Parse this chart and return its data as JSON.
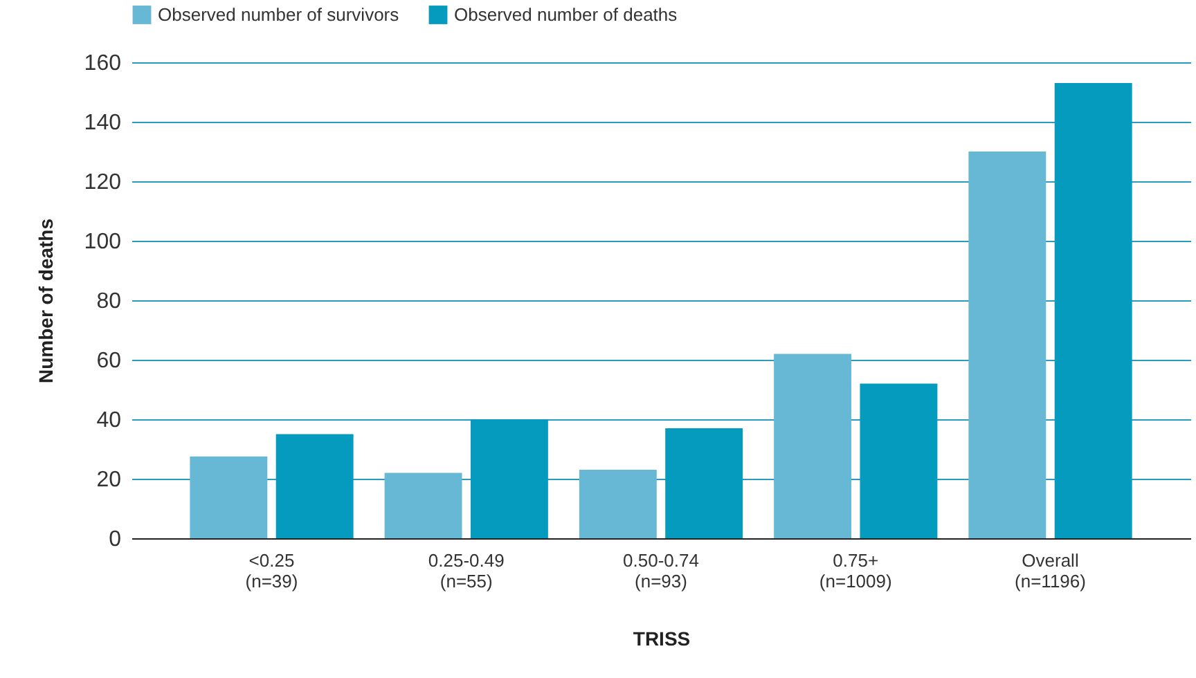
{
  "chart_data": {
    "type": "bar",
    "xlabel": "TRISS",
    "ylabel": "Number of deaths",
    "categories": [
      "<0.25\n(n=39)",
      "0.25-0.49\n(n=55)",
      "0.50-0.74\n(n=93)",
      "0.75+\n(n=1009)",
      "Overall\n(n=1196)"
    ],
    "series": [
      {
        "name": "Observed number of survivors",
        "color": "#67b8d4",
        "values": [
          27.5,
          22,
          23,
          62,
          130
        ]
      },
      {
        "name": "Observed number of deaths",
        "color": "#049bbf",
        "values": [
          35,
          40,
          37,
          52,
          153
        ]
      }
    ],
    "ylim": [
      0,
      160
    ],
    "yticks": [
      0,
      20,
      40,
      60,
      80,
      100,
      120,
      140,
      160
    ],
    "grid": "y",
    "legend": "top left"
  }
}
